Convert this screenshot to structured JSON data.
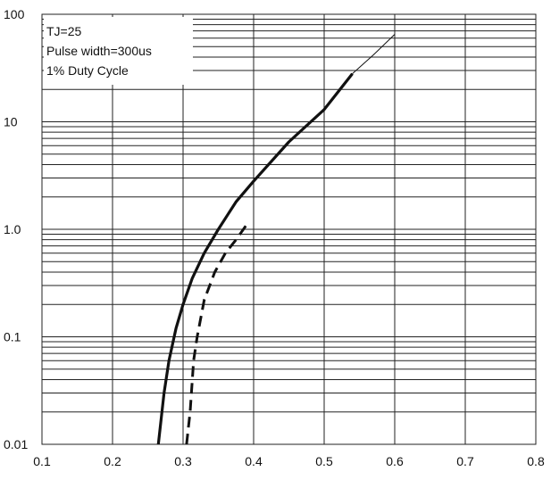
{
  "chart_data": {
    "type": "line",
    "title": "",
    "xlabel": "",
    "ylabel": "",
    "xlim": [
      0.1,
      0.8
    ],
    "ylim": [
      0.01,
      100
    ],
    "yscale": "log",
    "grid": true,
    "x_ticks": [
      "0.1",
      "0.2",
      "0.3",
      "0.4",
      "0.5",
      "0.6",
      "0.7",
      "0.8"
    ],
    "y_ticks": [
      "0.01",
      "0.1",
      "1.0",
      "10",
      "100"
    ],
    "annotations": [
      "TJ=25",
      "Pulse width=300us",
      "1% Duty Cycle"
    ],
    "series": [
      {
        "style": "solid",
        "points": [
          [
            0.265,
            0.01
          ],
          [
            0.273,
            0.03
          ],
          [
            0.28,
            0.06
          ],
          [
            0.29,
            0.12
          ],
          [
            0.3,
            0.2
          ],
          [
            0.313,
            0.35
          ],
          [
            0.33,
            0.6
          ],
          [
            0.35,
            1.0
          ],
          [
            0.375,
            1.8
          ],
          [
            0.4,
            2.8
          ],
          [
            0.45,
            6.5
          ],
          [
            0.5,
            13
          ],
          [
            0.54,
            28
          ]
        ]
      },
      {
        "style": "thin",
        "points": [
          [
            0.54,
            28
          ],
          [
            0.57,
            42
          ],
          [
            0.6,
            65
          ]
        ]
      },
      {
        "style": "dashed",
        "points": [
          [
            0.305,
            0.01
          ],
          [
            0.31,
            0.02
          ],
          [
            0.315,
            0.06
          ],
          [
            0.32,
            0.1
          ],
          [
            0.33,
            0.22
          ],
          [
            0.345,
            0.4
          ],
          [
            0.36,
            0.6
          ],
          [
            0.375,
            0.8
          ],
          [
            0.39,
            1.1
          ]
        ]
      }
    ]
  }
}
